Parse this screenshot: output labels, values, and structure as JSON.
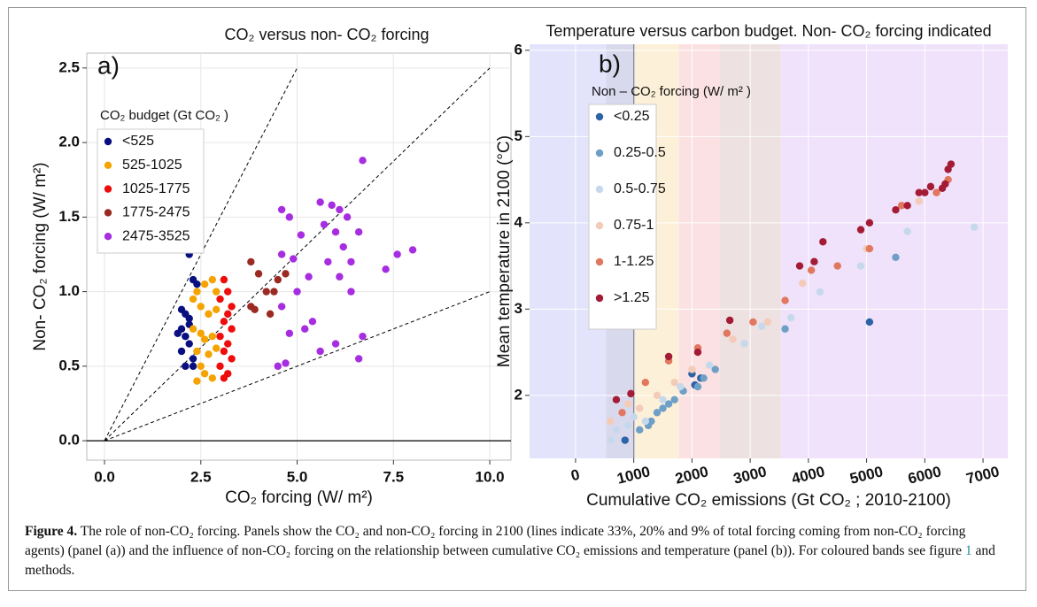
{
  "chart_data": [
    {
      "type": "scatter",
      "title": "CO₂ versus non- CO₂ forcing",
      "panel": "a)",
      "x_label": "CO₂ forcing (W/ m²)",
      "y_label": "Non- CO₂ forcing (W/ m²)",
      "xlim": [
        -0.46,
        10.55
      ],
      "ylim": [
        -0.13,
        2.6
      ],
      "xticks": [
        {
          "value": 0,
          "label": "0.0"
        },
        2.5,
        {
          "value": 5,
          "label": "5.0"
        },
        7.5,
        {
          "value": 10,
          "label": "10.0"
        }
      ],
      "yticks": [
        {
          "value": 0,
          "label": "0.0"
        },
        0.5,
        {
          "value": 1,
          "label": "1.0"
        },
        1.5,
        {
          "value": 2,
          "label": "2.0"
        },
        2.5
      ],
      "grid": true,
      "hline": 0,
      "reference_lines": [
        {
          "x": [
            0,
            5
          ],
          "y": [
            0,
            2.5
          ]
        },
        {
          "x": [
            0,
            10
          ],
          "y": [
            0,
            2.5
          ]
        },
        {
          "x": [
            0,
            10
          ],
          "y": [
            0,
            1
          ]
        }
      ],
      "legend_title": "CO₂ budget (Gt CO₂ )",
      "series": [
        {
          "name": "<525",
          "color": "#0a0f80",
          "x": [
            2.2,
            2.3,
            2.4,
            2.0,
            2.1,
            2.2,
            2.0,
            1.9,
            2.1,
            2.2,
            2.0,
            2.3,
            2.1,
            2.3,
            2.2
          ],
          "values": [
            1.25,
            1.08,
            1.05,
            0.88,
            0.85,
            0.82,
            0.75,
            0.72,
            0.7,
            0.65,
            0.6,
            0.55,
            0.5,
            0.5,
            0.78
          ]
        },
        {
          "name": "525-1025",
          "color": "#f5a300",
          "x": [
            2.4,
            2.6,
            2.8,
            2.5,
            2.7,
            2.9,
            2.3,
            2.5,
            2.6,
            2.8,
            2.4,
            2.7,
            2.9,
            2.5,
            2.6,
            2.8,
            2.4,
            2.9,
            2.3
          ],
          "values": [
            1.0,
            1.05,
            1.08,
            0.9,
            0.85,
            0.88,
            0.75,
            0.72,
            0.68,
            0.7,
            0.6,
            0.58,
            0.62,
            0.5,
            0.45,
            0.42,
            0.4,
            1.0,
            0.95
          ]
        },
        {
          "name": "1025-1775",
          "color": "#ee0c0c",
          "x": [
            3.1,
            3.2,
            3.0,
            3.2,
            3.1,
            3.3,
            3.0,
            3.2,
            3.1,
            3.3,
            3.0,
            3.2,
            3.1,
            3.3
          ],
          "values": [
            1.08,
            1.0,
            0.95,
            0.85,
            0.8,
            0.75,
            0.7,
            0.65,
            0.6,
            0.55,
            0.5,
            0.45,
            0.42,
            0.9
          ]
        },
        {
          "name": "1775-2475",
          "color": "#9b2a22",
          "x": [
            3.8,
            4.0,
            4.2,
            4.4,
            4.5,
            4.3,
            3.8,
            4.7,
            3.9
          ],
          "values": [
            1.2,
            1.12,
            1.0,
            1.0,
            1.08,
            0.85,
            0.9,
            1.12,
            0.88
          ]
        },
        {
          "name": "2475-3525",
          "color": "#a72de0",
          "x": [
            4.6,
            4.8,
            5.1,
            5.6,
            5.9,
            6.1,
            6.3,
            6.7,
            5.7,
            6.0,
            6.2,
            6.4,
            6.6,
            7.6,
            8.0,
            7.3,
            4.6,
            4.9,
            5.3,
            5.0,
            4.6,
            5.4,
            4.8,
            5.2,
            4.5,
            4.7,
            5.6,
            6.0,
            6.7,
            6.6,
            5.8,
            6.1,
            6.4
          ],
          "values": [
            1.55,
            1.5,
            1.38,
            1.6,
            1.58,
            1.55,
            1.5,
            1.88,
            1.45,
            1.4,
            1.3,
            1.2,
            1.4,
            1.25,
            1.28,
            1.15,
            1.25,
            1.22,
            1.1,
            1.0,
            0.9,
            0.8,
            0.72,
            0.75,
            0.5,
            0.52,
            0.6,
            0.65,
            0.7,
            0.55,
            1.2,
            1.1,
            1.0
          ]
        }
      ]
    },
    {
      "type": "scatter",
      "title": "Temperature versus carbon budget. Non- CO₂ forcing indicated",
      "panel": "b)",
      "x_label": "Cumulative CO₂ emissions (Gt CO₂ ; 2010-2100)",
      "y_label": "Mean temperature in 2100 (°C)",
      "xlim": [
        -790,
        7425
      ],
      "ylim": [
        1.27,
        6.07
      ],
      "xticks": [
        0,
        1000,
        2000,
        3000,
        4000,
        5000,
        6000,
        7000
      ],
      "yticks": [
        2,
        3,
        4,
        5,
        6
      ],
      "grid": true,
      "vline": 1000,
      "band_edges": [
        525,
        1025,
        1775,
        2475,
        3525
      ],
      "band_colors": [
        "#e3e3fb",
        "#d9d9ee",
        "#fdf0d8",
        "#fbe1e1",
        "#ede1e1",
        "#efe2fa"
      ],
      "legend_title": "Non – CO₂ forcing (W/ m² )",
      "series": [
        {
          "name": "<0.25",
          "color": "#2c63a6",
          "x": [
            5050,
            2050,
            2150,
            2000,
            850
          ],
          "values": [
            2.85,
            2.12,
            2.2,
            2.25,
            1.48
          ]
        },
        {
          "name": "0.25-0.5",
          "color": "#6e9fc6",
          "x": [
            1250,
            1300,
            1400,
            1500,
            1600,
            1700,
            1850,
            2100,
            2200,
            1100,
            3600,
            5500,
            2400
          ],
          "values": [
            1.65,
            1.7,
            1.8,
            1.85,
            1.9,
            1.95,
            2.05,
            2.1,
            2.2,
            1.6,
            2.77,
            3.6,
            2.3
          ]
        },
        {
          "name": "0.5-0.75",
          "color": "#c6d9ec",
          "x": [
            600,
            700,
            900,
            1000,
            1200,
            1500,
            1800,
            2300,
            2900,
            3200,
            3700,
            4200,
            4900,
            5700,
            6850
          ],
          "values": [
            1.48,
            1.6,
            1.65,
            1.75,
            1.7,
            1.95,
            2.1,
            2.35,
            2.6,
            2.8,
            2.9,
            3.2,
            3.5,
            3.9,
            3.95
          ]
        },
        {
          "name": "0.75-1",
          "color": "#f4cbb8",
          "x": [
            600,
            900,
            1100,
            1400,
            1700,
            2000,
            2700,
            3300,
            3900,
            4500,
            5000,
            5900
          ],
          "values": [
            1.7,
            1.9,
            1.85,
            2.0,
            2.15,
            2.3,
            2.65,
            2.85,
            3.3,
            3.5,
            3.7,
            4.25
          ]
        },
        {
          "name": "1-1.25",
          "color": "#e2775f",
          "x": [
            800,
            1200,
            1600,
            2100,
            2600,
            3050,
            3600,
            4050,
            4500,
            5050,
            5600,
            6200,
            6400
          ],
          "values": [
            1.8,
            2.15,
            2.4,
            2.55,
            2.72,
            2.85,
            3.1,
            3.45,
            3.5,
            3.7,
            4.2,
            4.35,
            4.5
          ]
        },
        {
          "name": ">1.25",
          "color": "#a41b36",
          "x": [
            700,
            950,
            1600,
            2100,
            2650,
            3850,
            4100,
            4250,
            4900,
            5050,
            5500,
            5700,
            5900,
            6100,
            6300,
            6450,
            6400,
            6350,
            6000
          ],
          "values": [
            1.95,
            2.02,
            2.45,
            2.5,
            2.87,
            3.5,
            3.55,
            3.78,
            3.92,
            4.0,
            4.15,
            4.2,
            4.35,
            4.42,
            4.4,
            4.68,
            4.62,
            4.45,
            4.35
          ]
        }
      ]
    }
  ],
  "caption": {
    "label": "Figure 4.",
    "text": " The role of non-CO₂ forcing. Panels show the CO₂ and non-CO₂ forcing in 2100 (lines indicate 33%, 20% and 9% of total forcing coming from non-CO₂ forcing agents) (panel (a)) and the influence of non-CO₂ forcing on the relationship between cumulative CO₂ emissions and temperature (panel (b)). For coloured bands see figure ",
    "link": "1",
    "text_end": " and methods."
  }
}
